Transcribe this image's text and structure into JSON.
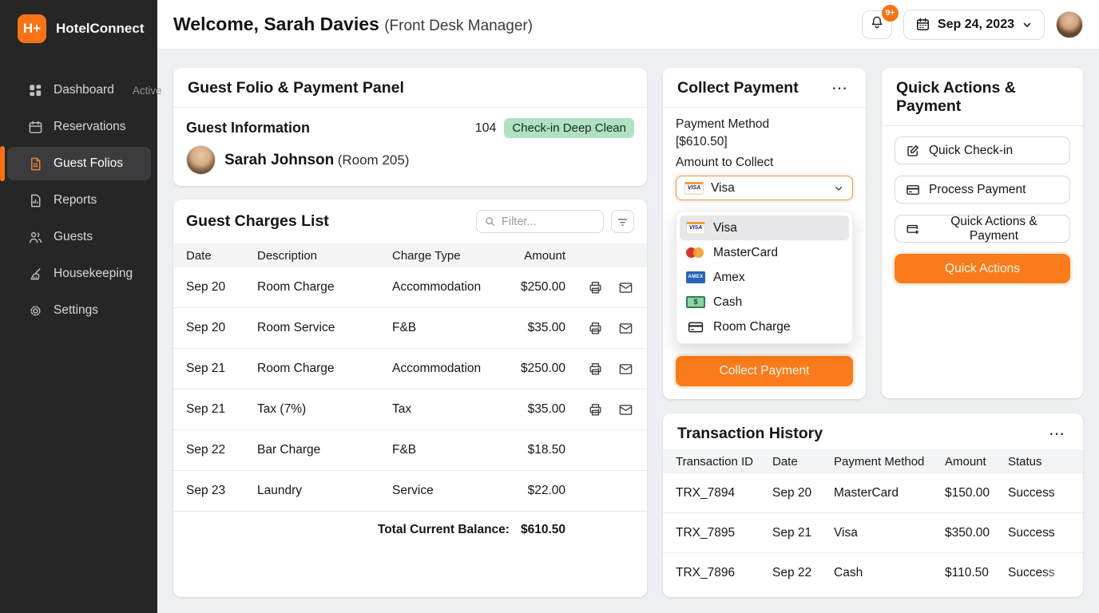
{
  "colors": {
    "accent": "#f97316",
    "sidebar_bg": "#262627",
    "badge_green_bg": "#b2e0c3",
    "content_bg": "#edeff2"
  },
  "sidebar": {
    "logo_text": "H+",
    "brand": "HotelConnect",
    "items": [
      {
        "label": "Dashboard",
        "icon": "grid",
        "badge": "Active",
        "active": false
      },
      {
        "label": "Reservations",
        "icon": "calendar",
        "active": false
      },
      {
        "label": "Guest Folios",
        "icon": "document",
        "active": true
      },
      {
        "label": "Reports",
        "icon": "report",
        "active": false
      },
      {
        "label": "Guests",
        "icon": "users",
        "active": false
      },
      {
        "label": "Housekeeping",
        "icon": "broom",
        "active": false
      },
      {
        "label": "Settings",
        "icon": "gear",
        "active": false
      }
    ]
  },
  "header": {
    "welcome": "Welcome, Sarah Davies",
    "role": "(Front Desk Manager)",
    "notification_count": "9+",
    "date": "Sep 24, 2023"
  },
  "folio_panel": {
    "title": "Guest Folio & Payment Panel",
    "guest_info_heading": "Guest Information",
    "room_number": "104",
    "status_badge": "Check-in Deep Clean",
    "guest_name": "Sarah Johnson",
    "guest_room": "(Room 205)"
  },
  "charges": {
    "title": "Guest Charges List",
    "filter_placeholder": "Filter...",
    "columns": [
      "Date",
      "Description",
      "Charge Type",
      "Amount"
    ],
    "rows": [
      {
        "date": "Sep 20",
        "description": "Room Charge",
        "type": "Accommodation",
        "amount": "$250.00",
        "actions": true
      },
      {
        "date": "Sep 20",
        "description": "Room Service",
        "type": "F&B",
        "amount": "$35.00",
        "actions": true
      },
      {
        "date": "Sep 21",
        "description": "Room Charge",
        "type": "Accommodation",
        "amount": "$250.00",
        "actions": true
      },
      {
        "date": "Sep 21",
        "description": "Tax (7%)",
        "type": "Tax",
        "amount": "$35.00",
        "actions": true
      },
      {
        "date": "Sep 22",
        "description": "Bar Charge",
        "type": "F&B",
        "amount": "$18.50",
        "actions": false
      },
      {
        "date": "Sep 23",
        "description": "Laundry",
        "type": "Service",
        "amount": "$22.00",
        "actions": false
      }
    ],
    "total_label": "Total Current Balance:",
    "total_value": "$610.50"
  },
  "collect_payment": {
    "title": "Collect Payment",
    "menu_icon": "⋯",
    "method_label": "Payment Method",
    "amount_bracket": "[$610.50]",
    "amount_label": "Amount to Collect",
    "selected_method": "Visa",
    "options": [
      {
        "label": "Visa",
        "icon": "visa",
        "selected": true
      },
      {
        "label": "MasterCard",
        "icon": "mastercard",
        "selected": false
      },
      {
        "label": "Amex",
        "icon": "amex",
        "selected": false
      },
      {
        "label": "Cash",
        "icon": "cash",
        "selected": false
      },
      {
        "label": "Room Charge",
        "icon": "card",
        "selected": false
      }
    ],
    "submit_label": "Collect Payment"
  },
  "quick_actions": {
    "title": "Quick Actions & Payment",
    "buttons": [
      {
        "label": "Quick Check-in",
        "icon": "edit"
      },
      {
        "label": "Process Payment",
        "icon": "creditcard"
      },
      {
        "label": "Quick Actions & Payment",
        "icon": "cardplus"
      }
    ],
    "primary_label": "Quick Actions"
  },
  "transactions": {
    "title": "Transaction History",
    "menu_icon": "⋯",
    "columns": [
      "Transaction ID",
      "Date",
      "Payment Method",
      "Amount",
      "Status"
    ],
    "rows": [
      {
        "id": "TRX_7894",
        "date": "Sep 20",
        "method": "MasterCard",
        "amount": "$150.00",
        "status": "Success"
      },
      {
        "id": "TRX_7895",
        "date": "Sep 21",
        "method": "Visa",
        "amount": "$350.00",
        "status": "Success"
      },
      {
        "id": "TRX_7896",
        "date": "Sep 22",
        "method": "Cash",
        "amount": "$110.50",
        "status": "Success"
      }
    ]
  }
}
